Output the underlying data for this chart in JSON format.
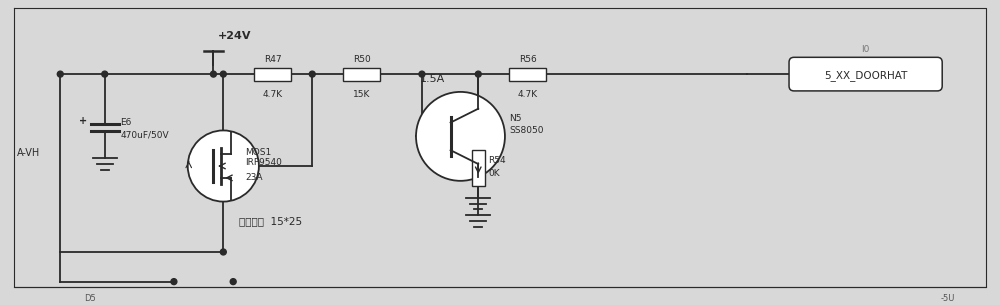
{
  "bg_color": "#d8d8d8",
  "line_color": "#2a2a2a",
  "line_width": 1.3,
  "thin_line": 0.8,
  "vcc_label": "+24V",
  "cap_name": "E6",
  "cap_val": "470uF/50V",
  "mos_label1": "MOS1",
  "mos_label2": "IRF9540",
  "mos_rating": "23A",
  "heat_label": "加散热片  15*25",
  "r47_name": "R47",
  "r47_val": "4.7K",
  "r50_name": "R50",
  "r50_val": "15K",
  "r56_name": "R56",
  "r56_val": "4.7K",
  "r54_name": "R54",
  "r54_val": "0K",
  "n5_name": "N5",
  "n5_val": "SS8050",
  "fuse_label": "1.5A",
  "conn_label": "5_XX_DOORHAT",
  "conn_net": "I0",
  "left_label": "A-VH",
  "bot_left": "D5",
  "bot_right": "-5U"
}
